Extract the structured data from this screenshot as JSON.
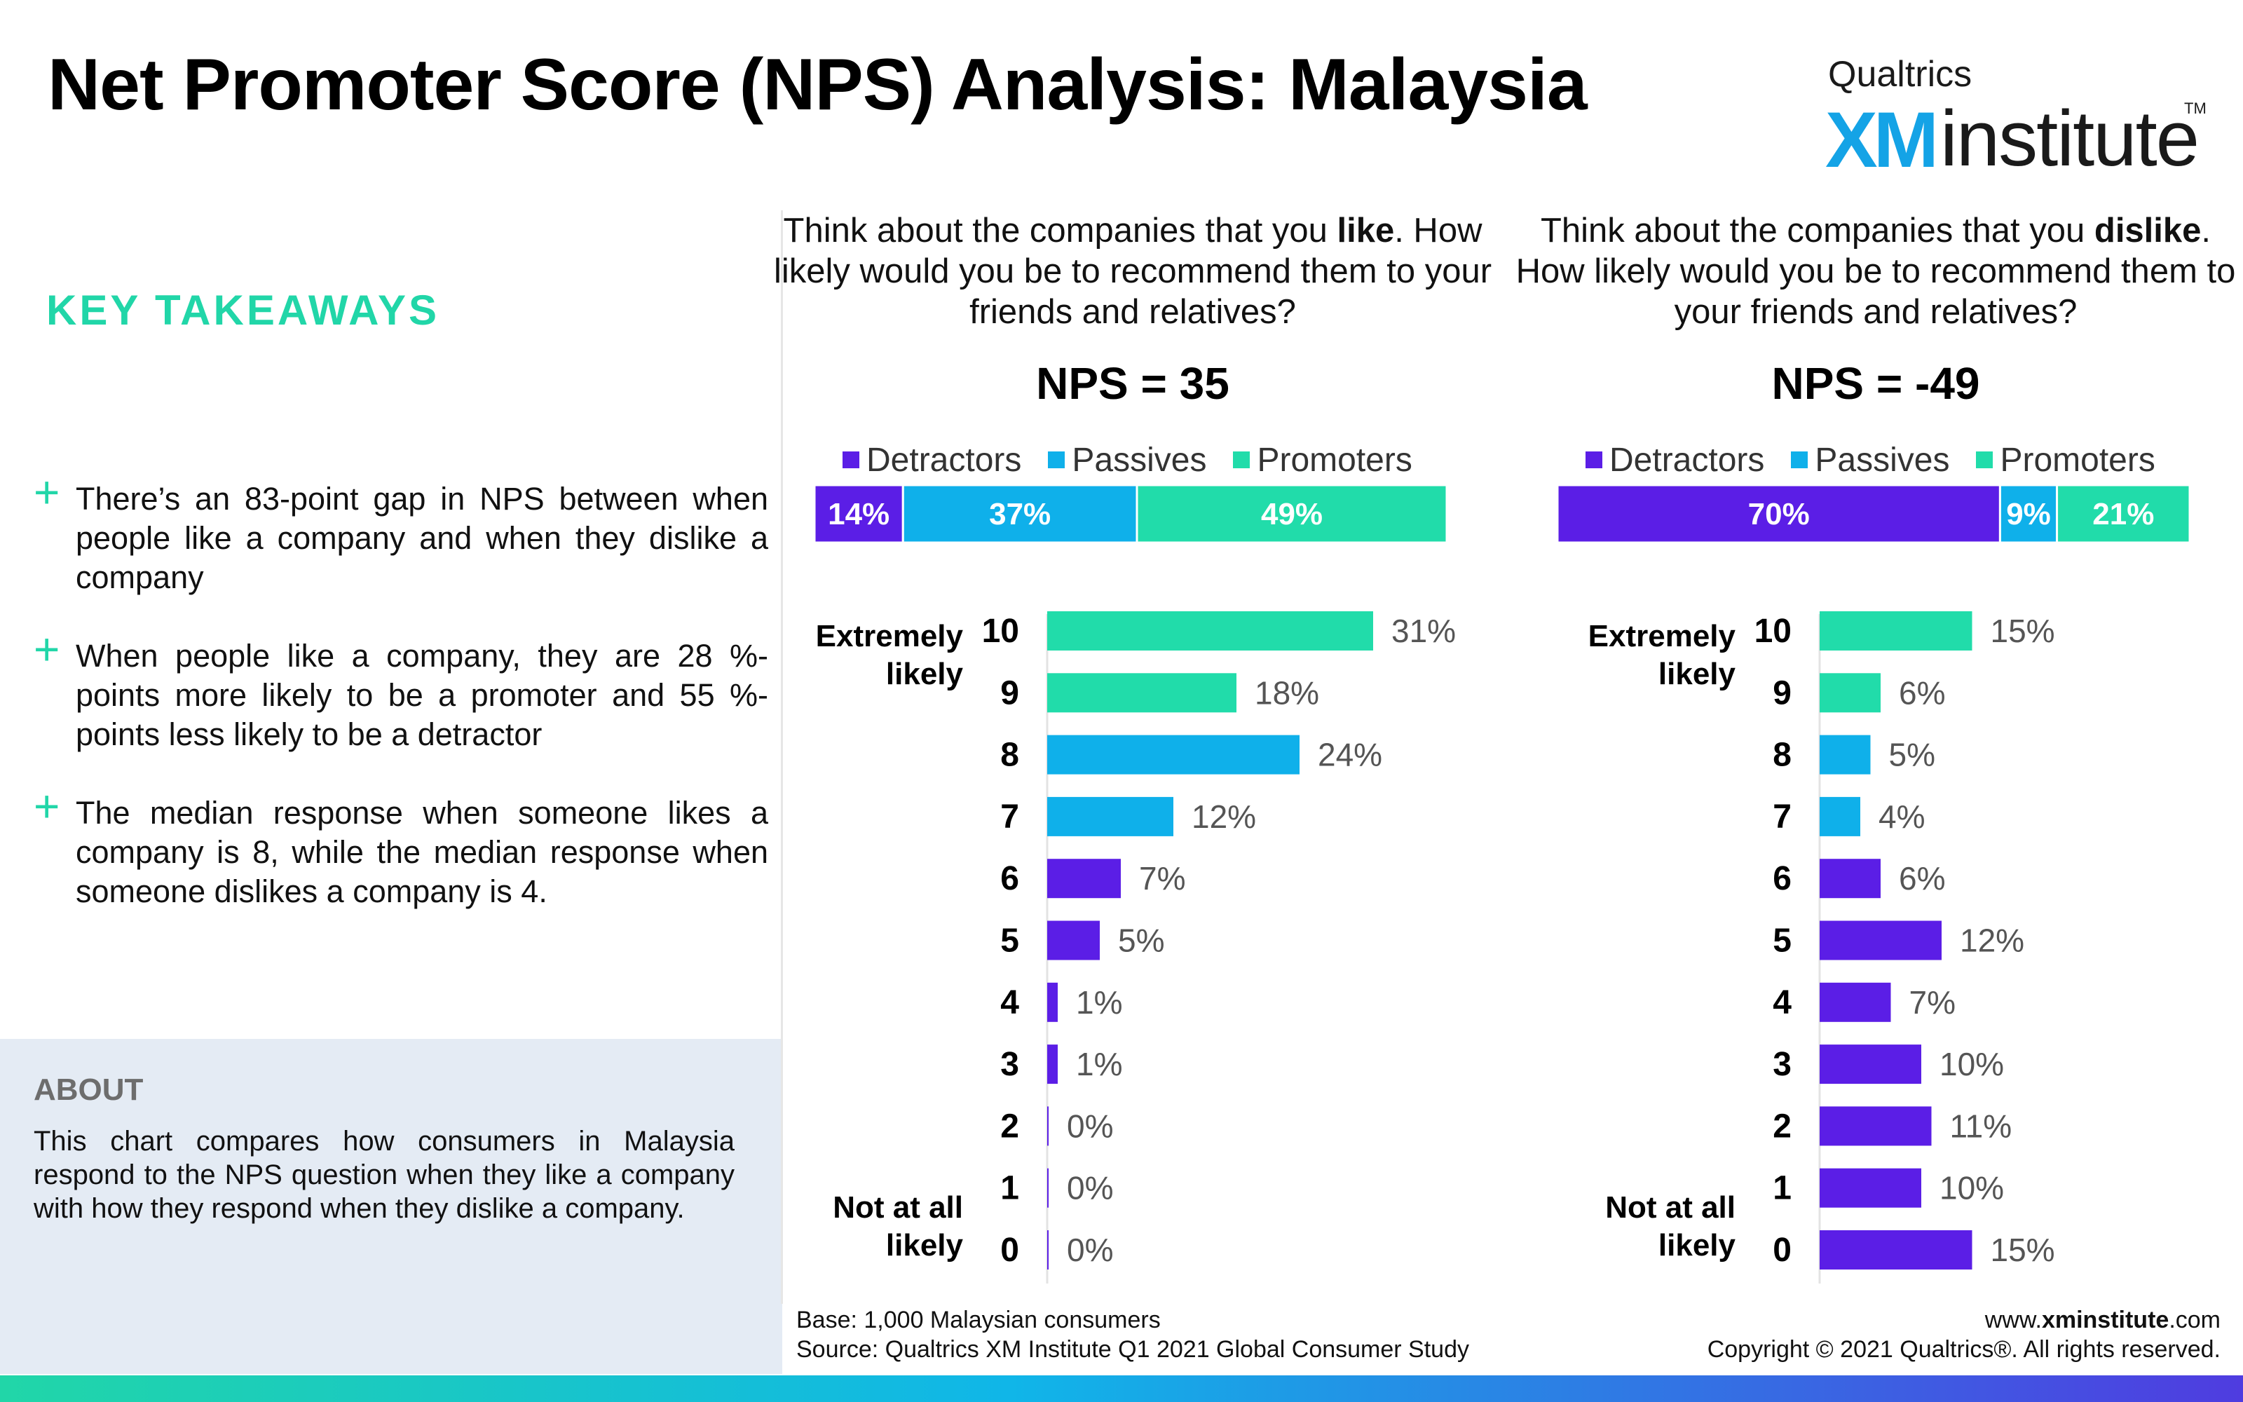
{
  "header": {
    "title": "Net Promoter Score (NPS) Analysis: Malaysia",
    "logo_brand": "Qualtrics",
    "logo_xm": "XM",
    "logo_institute": "institute",
    "logo_tm": "TM"
  },
  "takeaways": {
    "heading": "KEY TAKEAWAYS",
    "items": [
      "There’s an 83-point gap in NPS between when people like a company and when they dislike a company",
      "When people like a company, they are 28 %-points more likely to be a promoter and 55 %-points less likely to be a detractor",
      "The median response when someone likes a company is 8, while the median response when someone dislikes a company is 4."
    ]
  },
  "about": {
    "heading": "ABOUT",
    "text": "This chart compares how consumers in Malaysia respond to the NPS question when they like a company with how they respond when they dislike a company."
  },
  "panels": {
    "like": {
      "question_pre": "Think about the companies that you ",
      "question_bold": "like",
      "question_post": ". How likely would you be to recommend them to your friends and relatives?",
      "nps_label": "NPS = 35"
    },
    "dislike": {
      "question_pre": "Think about the companies that you ",
      "question_bold": "dislike",
      "question_post": ". How likely would you be to recommend them to your friends and relatives?",
      "nps_label": "NPS = -49"
    }
  },
  "legend": [
    "Detractors",
    "Passives",
    "Promoters"
  ],
  "colors": {
    "detractors": "#5b1ee6",
    "passives": "#0fb0ea",
    "promoters": "#21dcaa",
    "title_accent": "#21d6a8"
  },
  "chart_data": [
    {
      "type": "bar",
      "orientation": "horizontal-stacked",
      "categories": [
        "Detractors",
        "Passives",
        "Promoters"
      ],
      "values": [
        14,
        37,
        49
      ],
      "labels": [
        "14%",
        "37%",
        "49%"
      ]
    },
    {
      "type": "bar",
      "orientation": "horizontal",
      "categories": [
        "10",
        "9",
        "8",
        "7",
        "6",
        "5",
        "4",
        "3",
        "2",
        "1",
        "0"
      ],
      "values": [
        31,
        18,
        24,
        12,
        7,
        5,
        1,
        1,
        0,
        0,
        0
      ],
      "labels": [
        "31%",
        "18%",
        "24%",
        "12%",
        "7%",
        "5%",
        "1%",
        "1%",
        "0%",
        "0%",
        "0%"
      ],
      "axis_top_label": "Extremely likely",
      "axis_bottom_label": "Not at all likely"
    },
    {
      "type": "bar",
      "orientation": "horizontal-stacked",
      "categories": [
        "Detractors",
        "Passives",
        "Promoters"
      ],
      "values": [
        70,
        9,
        21
      ],
      "labels": [
        "70%",
        "9%",
        "21%"
      ]
    },
    {
      "type": "bar",
      "orientation": "horizontal",
      "categories": [
        "10",
        "9",
        "8",
        "7",
        "6",
        "5",
        "4",
        "3",
        "2",
        "1",
        "0"
      ],
      "values": [
        15,
        6,
        5,
        4,
        6,
        12,
        7,
        10,
        11,
        10,
        15
      ],
      "labels": [
        "15%",
        "6%",
        "5%",
        "4%",
        "6%",
        "12%",
        "7%",
        "10%",
        "11%",
        "10%",
        "15%"
      ],
      "axis_top_label": "Extremely likely",
      "axis_bottom_label": "Not at all likely"
    }
  ],
  "footer": {
    "base": "Base: 1,000 Malaysian consumers",
    "source": "Source: Qualtrics XM Institute Q1 2021 Global Consumer Study",
    "website_pre": "www.",
    "website_bold": "xminstitute",
    "website_post": ".com",
    "copyright": "Copyright © 2021 Qualtrics®. All rights reserved."
  }
}
